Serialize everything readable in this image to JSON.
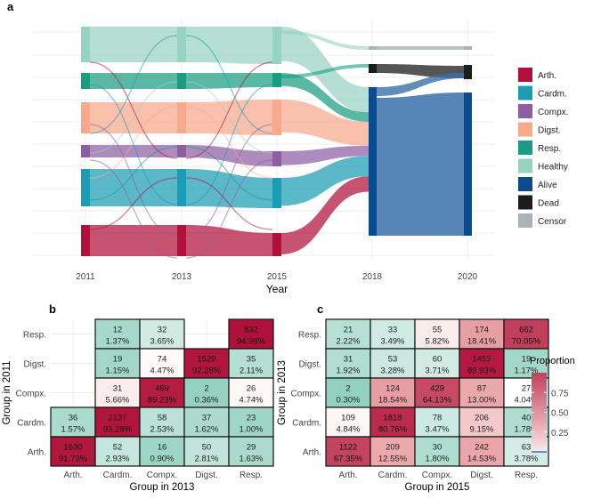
{
  "chart_data": [
    {
      "type": "sankey",
      "panel_label": "a",
      "xlabel": "Year",
      "years": [
        "2011",
        "2013",
        "2015",
        "2018",
        "2020"
      ],
      "groups_left": [
        "Arth.",
        "Cardm.",
        "Compx.",
        "Digst.",
        "Resp.",
        "Healthy"
      ],
      "legend": [
        {
          "label": "Arth.",
          "color": "#b0113a"
        },
        {
          "label": "Cardm.",
          "color": "#1a9cb4"
        },
        {
          "label": "Compx.",
          "color": "#8e5ea2"
        },
        {
          "label": "Digst.",
          "color": "#f7a98b"
        },
        {
          "label": "Resp.",
          "color": "#1a9c82"
        },
        {
          "label": "Healthy",
          "color": "#97d3c1"
        },
        {
          "label": "Alive",
          "color": "#0a4a8f"
        },
        {
          "label": "Dead",
          "color": "#1c1c1c"
        },
        {
          "label": "Censor",
          "color": "#aab3b5"
        }
      ],
      "outcomes_2018": {
        "Alive": 0.83,
        "Dead": 0.05,
        "Censor": 0.02
      }
    },
    {
      "type": "heatmap",
      "panel_label": "b",
      "xlabel": "Group in 2013",
      "ylabel": "Group in 2011",
      "x_categories": [
        "Arth.",
        "Cardm.",
        "Compx.",
        "Digst.",
        "Resp."
      ],
      "y_categories": [
        "Resp.",
        "Digst.",
        "Compx.",
        "Cardm.",
        "Arth."
      ],
      "cells": [
        [
          null,
          {
            "n": "12",
            "p": "1.37%",
            "v": 0.0137
          },
          {
            "n": "32",
            "p": "3.65%",
            "v": 0.0365
          },
          null,
          {
            "n": "832",
            "p": "94.98%",
            "v": 0.9498
          }
        ],
        [
          null,
          {
            "n": "19",
            "p": "1.15%",
            "v": 0.0115
          },
          {
            "n": "74",
            "p": "4.47%",
            "v": 0.0447
          },
          {
            "n": "1529",
            "p": "92.28%",
            "v": 0.9228
          },
          {
            "n": "35",
            "p": "2.11%",
            "v": 0.0211
          }
        ],
        [
          null,
          {
            "n": "31",
            "p": "5.66%",
            "v": 0.0566
          },
          {
            "n": "489",
            "p": "89.23%",
            "v": 0.8923
          },
          {
            "n": "2",
            "p": "0.36%",
            "v": 0.0036
          },
          {
            "n": "26",
            "p": "4.74%",
            "v": 0.0474
          }
        ],
        [
          {
            "n": "36",
            "p": "1.57%",
            "v": 0.0157
          },
          {
            "n": "2137",
            "p": "93.28%",
            "v": 0.9328
          },
          {
            "n": "58",
            "p": "2.53%",
            "v": 0.0253
          },
          {
            "n": "37",
            "p": "1.62%",
            "v": 0.0162
          },
          {
            "n": "23",
            "p": "1.00%",
            "v": 0.01
          }
        ],
        [
          {
            "n": "1630",
            "p": "91.73%",
            "v": 0.9173
          },
          {
            "n": "52",
            "p": "2.93%",
            "v": 0.0293
          },
          {
            "n": "16",
            "p": "0.90%",
            "v": 0.009
          },
          {
            "n": "50",
            "p": "2.81%",
            "v": 0.0281
          },
          {
            "n": "29",
            "p": "1.63%",
            "v": 0.0163
          }
        ]
      ]
    },
    {
      "type": "heatmap",
      "panel_label": "c",
      "xlabel": "Group in 2015",
      "ylabel": "Group in 2013",
      "x_categories": [
        "Arth.",
        "Cardm.",
        "Compx.",
        "Digst.",
        "Resp."
      ],
      "y_categories": [
        "Resp.",
        "Digst.",
        "Compx.",
        "Cardm.",
        "Arth."
      ],
      "cells": [
        [
          {
            "n": "21",
            "p": "2.22%",
            "v": 0.0222
          },
          {
            "n": "33",
            "p": "3.49%",
            "v": 0.0349
          },
          {
            "n": "55",
            "p": "5.82%",
            "v": 0.0582
          },
          {
            "n": "174",
            "p": "18.41%",
            "v": 0.1841
          },
          {
            "n": "662",
            "p": "70.05%",
            "v": 0.7005
          }
        ],
        [
          {
            "n": "31",
            "p": "1.92%",
            "v": 0.0192
          },
          {
            "n": "53",
            "p": "3.28%",
            "v": 0.0328
          },
          {
            "n": "60",
            "p": "3.71%",
            "v": 0.0371
          },
          {
            "n": "1453",
            "p": "89.93%",
            "v": 0.8993
          },
          {
            "n": "19",
            "p": "1.17%",
            "v": 0.0117
          }
        ],
        [
          {
            "n": "2",
            "p": "0.30%",
            "v": 0.003
          },
          {
            "n": "124",
            "p": "18.54%",
            "v": 0.1854
          },
          {
            "n": "429",
            "p": "64.13%",
            "v": 0.6413
          },
          {
            "n": "87",
            "p": "13.00%",
            "v": 0.13
          },
          {
            "n": "27",
            "p": "4.04%",
            "v": 0.0404
          }
        ],
        [
          {
            "n": "109",
            "p": "4.84%",
            "v": 0.0484
          },
          {
            "n": "1818",
            "p": "80.76%",
            "v": 0.8076
          },
          {
            "n": "78",
            "p": "3.47%",
            "v": 0.0347
          },
          {
            "n": "206",
            "p": "9.15%",
            "v": 0.0915
          },
          {
            "n": "40",
            "p": "1.78%",
            "v": 0.0178
          }
        ],
        [
          {
            "n": "1122",
            "p": "67.35%",
            "v": 0.6735
          },
          {
            "n": "209",
            "p": "12.55%",
            "v": 0.1255
          },
          {
            "n": "30",
            "p": "1.80%",
            "v": 0.018
          },
          {
            "n": "242",
            "p": "14.53%",
            "v": 0.1453
          },
          {
            "n": "63",
            "p": "3.78%",
            "v": 0.0378
          }
        ]
      ]
    },
    {
      "type": "colorbar",
      "title": "Proportion",
      "ticks": [
        "0.75",
        "0.50",
        "0.25"
      ],
      "tick_values": [
        0.75,
        0.5,
        0.25
      ],
      "range": [
        0,
        1
      ],
      "low_color": "#f0f0f0",
      "high_color": "#c0415a"
    }
  ]
}
